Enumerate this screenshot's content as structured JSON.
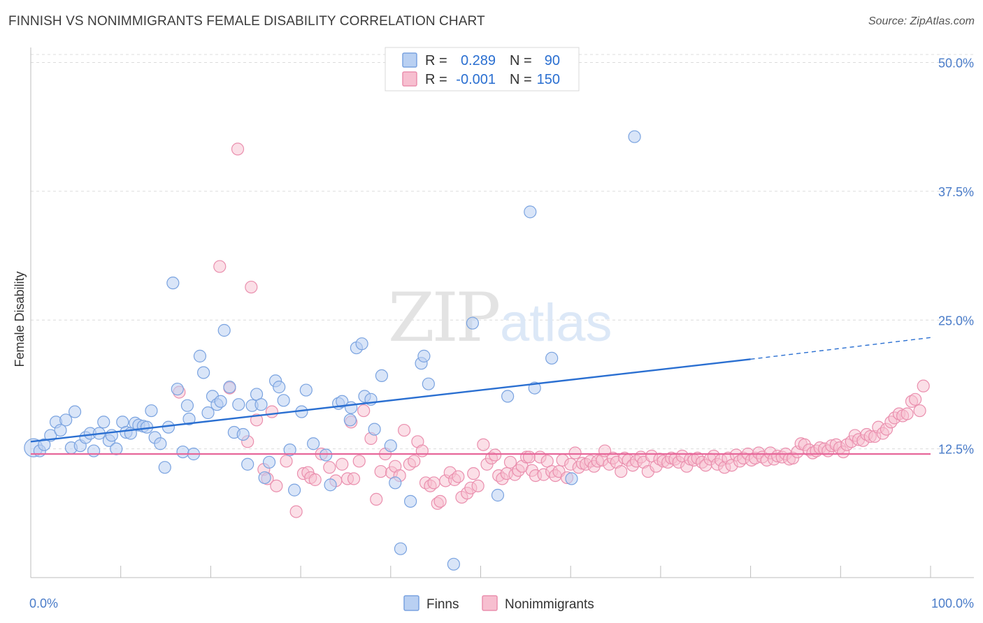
{
  "title": "FINNISH VS NONIMMIGRANTS FEMALE DISABILITY CORRELATION CHART",
  "source": "Source: ZipAtlas.com",
  "watermark": {
    "zip": "ZIP",
    "atlas": "atlas"
  },
  "colors": {
    "finns_fill": "#b9d0f2",
    "finns_stroke": "#7aa3e0",
    "finns_line": "#2a6fd1",
    "nonimm_fill": "#f7bfd0",
    "nonimm_stroke": "#ea8fae",
    "nonimm_line": "#e7679a",
    "tick_blue": "#4a7cc9"
  },
  "legend": {
    "row1": {
      "r_label": "R =",
      "r_value": "0.289",
      "n_label": "N =",
      "n_value": "90"
    },
    "row2": {
      "r_label": "R =",
      "r_value": "-0.001",
      "n_label": "N =",
      "n_value": "150"
    }
  },
  "bottom_legend": {
    "finns": "Finns",
    "nonimmigrants": "Nonimmigrants"
  },
  "chart_data": {
    "type": "scatter",
    "xlabel": "",
    "ylabel": "Female Disability",
    "xlim": [
      0,
      100
    ],
    "ylim": [
      0,
      52
    ],
    "x_tick_labels": {
      "left": "0.0%",
      "right": "100.0%"
    },
    "y_ticks": [
      {
        "value": 12.5,
        "label": "12.5%"
      },
      {
        "value": 25.0,
        "label": "25.0%"
      },
      {
        "value": 37.5,
        "label": "37.5%"
      },
      {
        "value": 50.0,
        "label": "50.0%"
      }
    ],
    "series": [
      {
        "name": "Finns",
        "trend": {
          "x0": 0,
          "y0": 13.2,
          "x1": 80,
          "y1": 21.2,
          "x_dashed_end": 100,
          "y_dashed_end": 23.3
        },
        "points": [
          [
            0.3,
            12.6
          ],
          [
            1.0,
            12.3
          ],
          [
            1.5,
            12.9
          ],
          [
            2.2,
            13.8
          ],
          [
            2.8,
            15.1
          ],
          [
            3.3,
            14.3
          ],
          [
            3.9,
            15.3
          ],
          [
            4.5,
            12.6
          ],
          [
            4.9,
            16.1
          ],
          [
            5.5,
            12.8
          ],
          [
            6.1,
            13.6
          ],
          [
            6.6,
            14.0
          ],
          [
            7.0,
            12.3
          ],
          [
            7.6,
            14.0
          ],
          [
            8.1,
            15.1
          ],
          [
            8.7,
            13.3
          ],
          [
            9.0,
            13.8
          ],
          [
            9.5,
            12.5
          ],
          [
            10.2,
            15.1
          ],
          [
            10.6,
            14.1
          ],
          [
            11.1,
            14.0
          ],
          [
            11.6,
            15.0
          ],
          [
            12.0,
            14.8
          ],
          [
            12.5,
            14.7
          ],
          [
            12.9,
            14.6
          ],
          [
            13.4,
            16.2
          ],
          [
            13.8,
            13.6
          ],
          [
            14.4,
            13.0
          ],
          [
            14.9,
            10.7
          ],
          [
            15.3,
            14.6
          ],
          [
            15.8,
            28.6
          ],
          [
            16.3,
            18.3
          ],
          [
            16.9,
            12.2
          ],
          [
            17.4,
            16.7
          ],
          [
            17.6,
            15.4
          ],
          [
            18.1,
            12.0
          ],
          [
            18.8,
            21.5
          ],
          [
            19.2,
            19.9
          ],
          [
            19.7,
            16.0
          ],
          [
            20.2,
            17.6
          ],
          [
            20.7,
            16.8
          ],
          [
            21.1,
            17.1
          ],
          [
            21.5,
            24.0
          ],
          [
            22.1,
            18.5
          ],
          [
            22.6,
            14.1
          ],
          [
            23.1,
            16.8
          ],
          [
            23.6,
            13.9
          ],
          [
            24.1,
            11.0
          ],
          [
            24.6,
            16.7
          ],
          [
            25.1,
            17.8
          ],
          [
            25.6,
            16.8
          ],
          [
            26.0,
            9.7
          ],
          [
            26.5,
            11.2
          ],
          [
            27.2,
            19.1
          ],
          [
            27.6,
            18.5
          ],
          [
            28.1,
            17.2
          ],
          [
            28.8,
            12.4
          ],
          [
            29.3,
            8.5
          ],
          [
            30.1,
            16.1
          ],
          [
            30.6,
            18.2
          ],
          [
            31.4,
            13.0
          ],
          [
            32.8,
            11.9
          ],
          [
            33.3,
            9.0
          ],
          [
            34.2,
            16.9
          ],
          [
            34.6,
            17.1
          ],
          [
            35.5,
            15.3
          ],
          [
            35.6,
            16.5
          ],
          [
            36.2,
            22.3
          ],
          [
            36.8,
            22.7
          ],
          [
            37.1,
            17.6
          ],
          [
            37.8,
            17.3
          ],
          [
            38.2,
            14.4
          ],
          [
            39.0,
            19.6
          ],
          [
            40.0,
            12.8
          ],
          [
            40.5,
            9.2
          ],
          [
            41.1,
            2.8
          ],
          [
            42.2,
            7.4
          ],
          [
            43.4,
            20.8
          ],
          [
            43.7,
            21.5
          ],
          [
            44.2,
            18.8
          ],
          [
            47.0,
            1.3
          ],
          [
            49.1,
            24.7
          ],
          [
            51.9,
            8.0
          ],
          [
            53.0,
            17.6
          ],
          [
            55.5,
            35.5
          ],
          [
            56.0,
            18.4
          ],
          [
            57.9,
            21.3
          ],
          [
            60.1,
            9.6
          ],
          [
            67.1,
            42.8
          ]
        ]
      },
      {
        "name": "Nonimmigrants",
        "trend": {
          "x0": 0,
          "y0": 12.0,
          "x1": 100,
          "y1": 12.0
        },
        "points": [
          [
            16.5,
            18.0
          ],
          [
            21.0,
            30.2
          ],
          [
            22.1,
            18.4
          ],
          [
            23.0,
            41.6
          ],
          [
            24.1,
            13.2
          ],
          [
            24.5,
            28.2
          ],
          [
            25.1,
            15.3
          ],
          [
            25.9,
            10.5
          ],
          [
            26.3,
            9.6
          ],
          [
            26.8,
            16.1
          ],
          [
            27.3,
            8.9
          ],
          [
            28.4,
            11.3
          ],
          [
            29.5,
            6.4
          ],
          [
            30.3,
            10.1
          ],
          [
            30.8,
            10.2
          ],
          [
            31.1,
            9.7
          ],
          [
            31.6,
            9.5
          ],
          [
            32.3,
            12.0
          ],
          [
            33.2,
            10.7
          ],
          [
            33.9,
            9.4
          ],
          [
            34.6,
            11.0
          ],
          [
            35.2,
            9.6
          ],
          [
            35.6,
            15.1
          ],
          [
            35.9,
            9.6
          ],
          [
            36.5,
            11.3
          ],
          [
            37.0,
            16.2
          ],
          [
            37.8,
            13.5
          ],
          [
            38.4,
            7.6
          ],
          [
            38.9,
            10.3
          ],
          [
            39.4,
            12.0
          ],
          [
            40.1,
            10.2
          ],
          [
            40.5,
            10.8
          ],
          [
            41.0,
            9.9
          ],
          [
            41.5,
            14.3
          ],
          [
            42.1,
            11.0
          ],
          [
            42.6,
            11.3
          ],
          [
            43.0,
            13.2
          ],
          [
            43.5,
            12.3
          ],
          [
            43.9,
            9.2
          ],
          [
            44.4,
            8.9
          ],
          [
            44.8,
            9.2
          ],
          [
            45.2,
            7.2
          ],
          [
            45.5,
            7.4
          ],
          [
            46.1,
            9.4
          ],
          [
            46.6,
            10.2
          ],
          [
            47.1,
            9.5
          ],
          [
            47.5,
            9.8
          ],
          [
            47.9,
            7.8
          ],
          [
            48.5,
            8.2
          ],
          [
            48.9,
            8.7
          ],
          [
            49.2,
            10.1
          ],
          [
            49.7,
            8.9
          ],
          [
            50.3,
            12.9
          ],
          [
            50.7,
            11.0
          ],
          [
            51.2,
            11.6
          ],
          [
            51.6,
            11.9
          ],
          [
            52.0,
            9.9
          ],
          [
            52.4,
            9.6
          ],
          [
            52.9,
            10.1
          ],
          [
            53.3,
            11.2
          ],
          [
            53.8,
            10.0
          ],
          [
            54.2,
            10.4
          ],
          [
            54.6,
            10.8
          ],
          [
            55.1,
            11.7
          ],
          [
            55.4,
            11.7
          ],
          [
            55.7,
            10.4
          ],
          [
            56.1,
            9.9
          ],
          [
            56.6,
            11.7
          ],
          [
            57.0,
            10.0
          ],
          [
            57.4,
            11.3
          ],
          [
            57.9,
            10.3
          ],
          [
            58.3,
            9.9
          ],
          [
            58.7,
            10.3
          ],
          [
            59.1,
            11.4
          ],
          [
            59.6,
            9.7
          ],
          [
            60.0,
            11.0
          ],
          [
            60.5,
            12.1
          ],
          [
            60.9,
            10.7
          ],
          [
            61.3,
            11.1
          ],
          [
            61.7,
            11.0
          ],
          [
            62.2,
            11.3
          ],
          [
            62.6,
            10.8
          ],
          [
            63.0,
            11.3
          ],
          [
            63.5,
            11.4
          ],
          [
            63.8,
            12.3
          ],
          [
            64.3,
            11.0
          ],
          [
            64.7,
            11.6
          ],
          [
            65.1,
            11.2
          ],
          [
            65.6,
            10.3
          ],
          [
            66.0,
            11.6
          ],
          [
            66.4,
            11.4
          ],
          [
            66.9,
            10.9
          ],
          [
            67.3,
            11.3
          ],
          [
            67.8,
            11.7
          ],
          [
            68.1,
            11.2
          ],
          [
            68.6,
            10.3
          ],
          [
            69.0,
            11.8
          ],
          [
            69.5,
            10.8
          ],
          [
            69.9,
            11.5
          ],
          [
            70.3,
            11.3
          ],
          [
            70.8,
            11.2
          ],
          [
            71.2,
            11.6
          ],
          [
            71.6,
            11.5
          ],
          [
            72.0,
            11.2
          ],
          [
            72.4,
            11.8
          ],
          [
            72.9,
            10.8
          ],
          [
            73.3,
            11.5
          ],
          [
            73.7,
            11.4
          ],
          [
            74.1,
            11.6
          ],
          [
            74.6,
            11.2
          ],
          [
            75.0,
            10.9
          ],
          [
            75.5,
            11.5
          ],
          [
            75.9,
            11.8
          ],
          [
            76.3,
            11.0
          ],
          [
            76.7,
            11.4
          ],
          [
            77.1,
            10.7
          ],
          [
            77.5,
            11.6
          ],
          [
            77.9,
            10.9
          ],
          [
            78.4,
            11.9
          ],
          [
            78.8,
            11.3
          ],
          [
            79.2,
            11.6
          ],
          [
            79.7,
            12.0
          ],
          [
            80.1,
            11.4
          ],
          [
            80.5,
            11.6
          ],
          [
            80.9,
            12.1
          ],
          [
            81.3,
            11.7
          ],
          [
            81.8,
            11.4
          ],
          [
            82.2,
            12.1
          ],
          [
            82.6,
            11.5
          ],
          [
            83.0,
            11.8
          ],
          [
            83.5,
            11.7
          ],
          [
            83.9,
            12.0
          ],
          [
            84.3,
            11.5
          ],
          [
            84.7,
            11.6
          ],
          [
            85.2,
            12.2
          ],
          [
            85.6,
            13.0
          ],
          [
            86.0,
            12.9
          ],
          [
            86.5,
            12.4
          ],
          [
            86.9,
            12.1
          ],
          [
            87.3,
            12.3
          ],
          [
            87.7,
            12.6
          ],
          [
            88.2,
            12.5
          ],
          [
            88.6,
            12.3
          ],
          [
            89.0,
            12.8
          ],
          [
            89.5,
            12.9
          ],
          [
            89.9,
            12.6
          ],
          [
            90.3,
            12.2
          ],
          [
            90.7,
            12.9
          ],
          [
            91.2,
            13.2
          ],
          [
            91.6,
            13.8
          ],
          [
            92.0,
            13.4
          ],
          [
            92.5,
            13.3
          ],
          [
            92.9,
            13.9
          ],
          [
            93.3,
            13.7
          ],
          [
            93.8,
            13.7
          ],
          [
            94.2,
            14.6
          ],
          [
            94.7,
            14.0
          ],
          [
            95.1,
            14.4
          ],
          [
            95.6,
            15.1
          ],
          [
            96.0,
            15.5
          ],
          [
            96.5,
            15.9
          ],
          [
            96.9,
            15.7
          ],
          [
            97.4,
            15.9
          ],
          [
            97.9,
            17.1
          ],
          [
            98.3,
            17.3
          ],
          [
            98.8,
            16.2
          ],
          [
            99.2,
            18.6
          ]
        ]
      }
    ]
  }
}
